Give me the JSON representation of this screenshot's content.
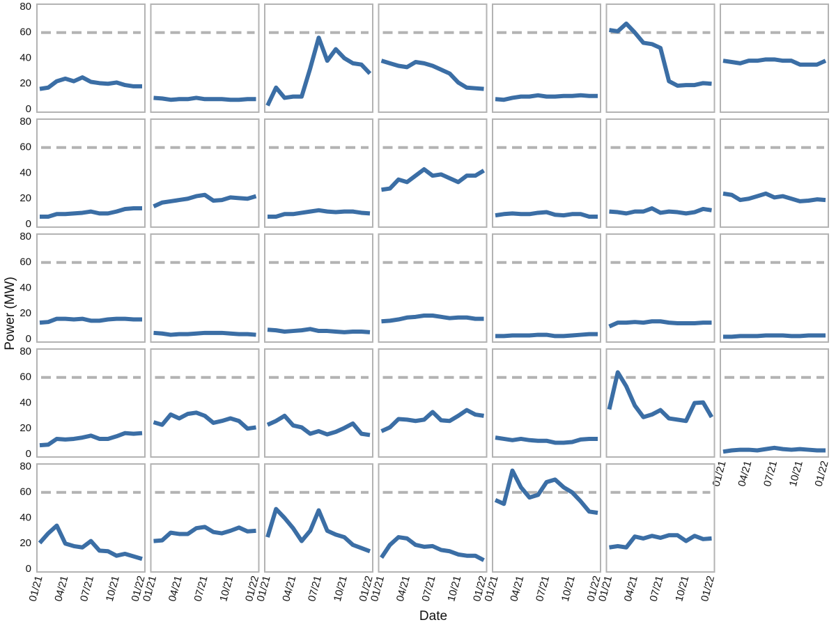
{
  "chart_data": {
    "type": "line",
    "xlabel": "Date",
    "ylabel": "Power (MW)",
    "color": "#3b6ea5",
    "hline": 60,
    "hline_color": "#b3b3b3",
    "x": [
      "01/21",
      "02/21",
      "03/21",
      "04/21",
      "05/21",
      "06/21",
      "07/21",
      "08/21",
      "09/21",
      "10/21",
      "11/21",
      "12/21",
      "01/22"
    ],
    "xticks": [
      "01/21",
      "04/21",
      "07/21",
      "10/21",
      "01/22"
    ],
    "ylim": [
      0,
      80
    ],
    "yticks": [
      0,
      20,
      40,
      60,
      80
    ],
    "series": [
      {
        "values": [
          16,
          17,
          22,
          24,
          22,
          25,
          21.5,
          20.5,
          20,
          21,
          19,
          18,
          18
        ]
      },
      {
        "values": [
          9,
          8.5,
          7.5,
          8,
          8,
          9,
          8,
          8,
          8,
          7.5,
          7.5,
          8,
          8
        ]
      },
      {
        "values": [
          3,
          17,
          9,
          10,
          10,
          32,
          56,
          38,
          47,
          40,
          36,
          35,
          28
        ]
      },
      {
        "values": [
          38,
          36,
          34,
          33,
          37,
          36,
          34,
          31,
          28,
          21,
          17,
          16.5,
          16
        ]
      },
      {
        "values": [
          8,
          7.5,
          9,
          10,
          10,
          11,
          10,
          10,
          10.5,
          10.5,
          11,
          10.5,
          10.5
        ]
      },
      {
        "values": [
          62,
          61,
          67,
          60,
          52,
          51,
          48,
          22,
          18.5,
          19,
          19,
          20.5,
          20
        ]
      },
      {
        "values": [
          38,
          37,
          36,
          38,
          38,
          39,
          39,
          38,
          38,
          35,
          35,
          35,
          38
        ]
      },
      {
        "values": [
          6,
          6,
          8,
          8,
          8.5,
          9,
          10,
          8.5,
          8.5,
          10,
          12,
          12.5,
          12.5
        ]
      },
      {
        "values": [
          14,
          17,
          18,
          19,
          20,
          22,
          23,
          18.5,
          19,
          21,
          20.5,
          20,
          22
        ]
      },
      {
        "values": [
          6,
          6,
          8,
          8,
          9,
          10,
          11,
          10,
          9.5,
          10,
          10,
          9,
          8.5
        ]
      },
      {
        "values": [
          27,
          28,
          35,
          33,
          38,
          43,
          38,
          39,
          36,
          33,
          38,
          38,
          42
        ]
      },
      {
        "values": [
          7,
          8,
          8.5,
          8,
          8,
          9,
          9.5,
          7.5,
          7,
          8,
          8,
          6,
          6
        ]
      },
      {
        "values": [
          10,
          9.5,
          8.5,
          10,
          10,
          12.5,
          9,
          10,
          9.5,
          8.5,
          9.5,
          12,
          11
        ]
      },
      {
        "values": [
          24,
          23,
          19,
          20,
          22,
          24,
          21,
          22,
          20,
          18,
          18.5,
          19.5,
          19
        ]
      },
      {
        "values": [
          13,
          13.5,
          16,
          16,
          15.5,
          16,
          14.5,
          14.5,
          15.5,
          16,
          16,
          15.5,
          15.5
        ]
      },
      {
        "values": [
          5,
          4.5,
          3.5,
          4,
          4,
          4.5,
          5,
          5,
          5,
          4.5,
          4,
          4,
          3.5
        ]
      },
      {
        "values": [
          7.5,
          7,
          6,
          6.5,
          7,
          8,
          6.5,
          6.5,
          6,
          5.5,
          6,
          6,
          5.5
        ]
      },
      {
        "values": [
          14,
          14.5,
          15.5,
          17,
          17.5,
          18.5,
          18.5,
          17.5,
          16.5,
          17,
          17,
          16,
          16
        ]
      },
      {
        "values": [
          2.5,
          2.5,
          3,
          3,
          3,
          3.5,
          3.5,
          2.5,
          2.5,
          3,
          3.5,
          4,
          4
        ]
      },
      {
        "values": [
          10,
          13,
          13,
          13.5,
          13,
          14,
          14,
          13,
          12.5,
          12.5,
          12.5,
          13,
          13
        ]
      },
      {
        "values": [
          2,
          2,
          2.5,
          2.5,
          2.5,
          3,
          3,
          3,
          2.5,
          2.5,
          3,
          3,
          3
        ]
      },
      {
        "values": [
          7,
          7.5,
          12,
          11.5,
          12,
          13,
          14.5,
          12,
          12,
          14,
          16.5,
          16,
          16.5
        ]
      },
      {
        "values": [
          25,
          23,
          31,
          28,
          31.5,
          32.5,
          30,
          24.5,
          26,
          28,
          26,
          20,
          21
        ]
      },
      {
        "values": [
          23,
          26,
          30,
          22.5,
          21,
          16,
          18,
          15.5,
          17.5,
          20.5,
          24,
          16,
          15
        ]
      },
      {
        "values": [
          18,
          21,
          27.5,
          27,
          26,
          27,
          33,
          26.5,
          26,
          30,
          34.5,
          31,
          30
        ]
      },
      {
        "values": [
          13,
          12,
          11,
          12,
          11,
          10.5,
          10.5,
          9,
          9,
          9.5,
          11.5,
          12,
          12
        ]
      },
      {
        "values": [
          35,
          64,
          53,
          38,
          29,
          31,
          34.5,
          28,
          27,
          26,
          40,
          40.5,
          29
        ]
      },
      {
        "values": [
          2,
          3,
          3.5,
          3.5,
          3,
          4,
          5,
          4,
          3.5,
          4,
          3.5,
          3,
          3
        ]
      },
      {
        "values": [
          20.5,
          28,
          34,
          20,
          18,
          17,
          22,
          14.5,
          14,
          10.5,
          12,
          10,
          8
        ]
      },
      {
        "values": [
          22,
          22.5,
          28.5,
          27.5,
          27.5,
          32,
          33,
          29,
          28,
          30,
          32.5,
          29.5,
          30
        ]
      },
      {
        "values": [
          25,
          47,
          40,
          32,
          22,
          30,
          46,
          30,
          27,
          25,
          19,
          16.5,
          14
        ]
      },
      {
        "values": [
          9,
          19,
          25,
          24,
          19,
          17.5,
          18,
          15,
          14,
          11.5,
          10.5,
          10.5,
          7
        ]
      },
      {
        "values": [
          54,
          51,
          77,
          64,
          56,
          58,
          68,
          70,
          64,
          60,
          53,
          45,
          44
        ]
      },
      {
        "values": [
          17,
          18,
          17,
          25.5,
          24,
          26,
          24.5,
          26.5,
          26.5,
          22,
          26,
          23.5,
          24
        ]
      }
    ]
  }
}
